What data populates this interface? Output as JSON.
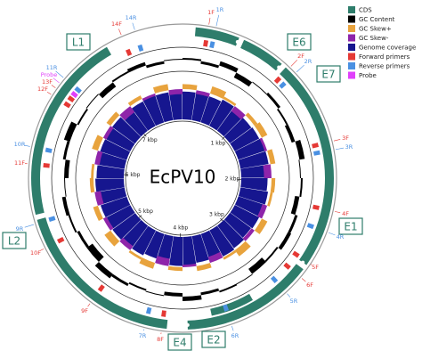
{
  "title": "EcPV10",
  "legend": [
    {
      "label": "CDS",
      "color": "#2e7d6b"
    },
    {
      "label": "GC Content",
      "color": "#000000"
    },
    {
      "label": "GC Skew+",
      "color": "#e8a33d"
    },
    {
      "label": "GC Skew-",
      "color": "#8e24aa"
    },
    {
      "label": "Genome coverage",
      "color": "#16168f"
    },
    {
      "label": "Forward primers",
      "color": "#e53935"
    },
    {
      "label": "Reverse primers",
      "color": "#4a90e2"
    },
    {
      "label": "Probe",
      "color": "#e040fb"
    }
  ],
  "genes": [
    "L1",
    "E6",
    "E7",
    "E1",
    "E2",
    "E4",
    "L2"
  ],
  "kbp_labels": [
    "1 kbp",
    "2 kbp",
    "3 kbp",
    "4 kbp",
    "5 kbp",
    "6 kbp",
    "7 kbp"
  ],
  "primers": [
    "1F",
    "1R",
    "14F",
    "14R",
    "2F",
    "2R",
    "3F",
    "3R",
    "4F",
    "4R",
    "5F",
    "6F",
    "5R",
    "6R",
    "7R",
    "8F",
    "9F",
    "9R",
    "10F",
    "11F",
    "10R",
    "11R",
    "Probe",
    "13F",
    "12F"
  ],
  "tracks": {
    "coverage": [
      0.92,
      0.95,
      0.9,
      0.97,
      0.93,
      0.88,
      0.91,
      0.96,
      0.94,
      0.9,
      0.87,
      0.92,
      0.95,
      0.9,
      0.86,
      0.93,
      0.97,
      0.91,
      0.89,
      0.94,
      0.96,
      0.9,
      0.85,
      0.92,
      0.95,
      0.93,
      0.88,
      0.91,
      0.97,
      0.94,
      0.9,
      0.86,
      0.92,
      0.96,
      0.93,
      0.89,
      0.91,
      0.95,
      0.93,
      0.9
    ],
    "gc_content": [
      0.2,
      -0.3,
      0.5,
      -0.6,
      0.1,
      0.3,
      -0.2,
      -0.4,
      0.6,
      -0.1,
      0.2,
      -0.5,
      0.3,
      0.4,
      -0.2,
      -0.7,
      0.1,
      0.2,
      -0.3,
      0.5,
      -0.4,
      0.1,
      -0.2,
      0.3,
      0.6,
      -0.8,
      -0.3,
      0.2,
      0.4,
      -0.1,
      -0.5,
      0.3,
      0.7,
      -0.2,
      0.1,
      -0.6,
      0.2,
      0.4,
      -0.3,
      0.1
    ],
    "gc_skew": [
      0.4,
      -0.3,
      0.6,
      0.2,
      -0.5,
      0.3,
      0.5,
      -0.2,
      0.4,
      -0.6,
      0.3,
      0.2,
      -0.4,
      0.5,
      -0.3,
      0.6,
      0.2,
      -0.5,
      0.4,
      -0.2,
      0.3,
      -0.6,
      0.5,
      0.2,
      -0.4,
      0.6,
      -0.3,
      0.4,
      -0.5,
      0.3,
      0.2,
      -0.4,
      0.5,
      -0.3,
      0.4,
      -0.6,
      0.3,
      -0.2,
      0.5,
      -0.4
    ]
  }
}
